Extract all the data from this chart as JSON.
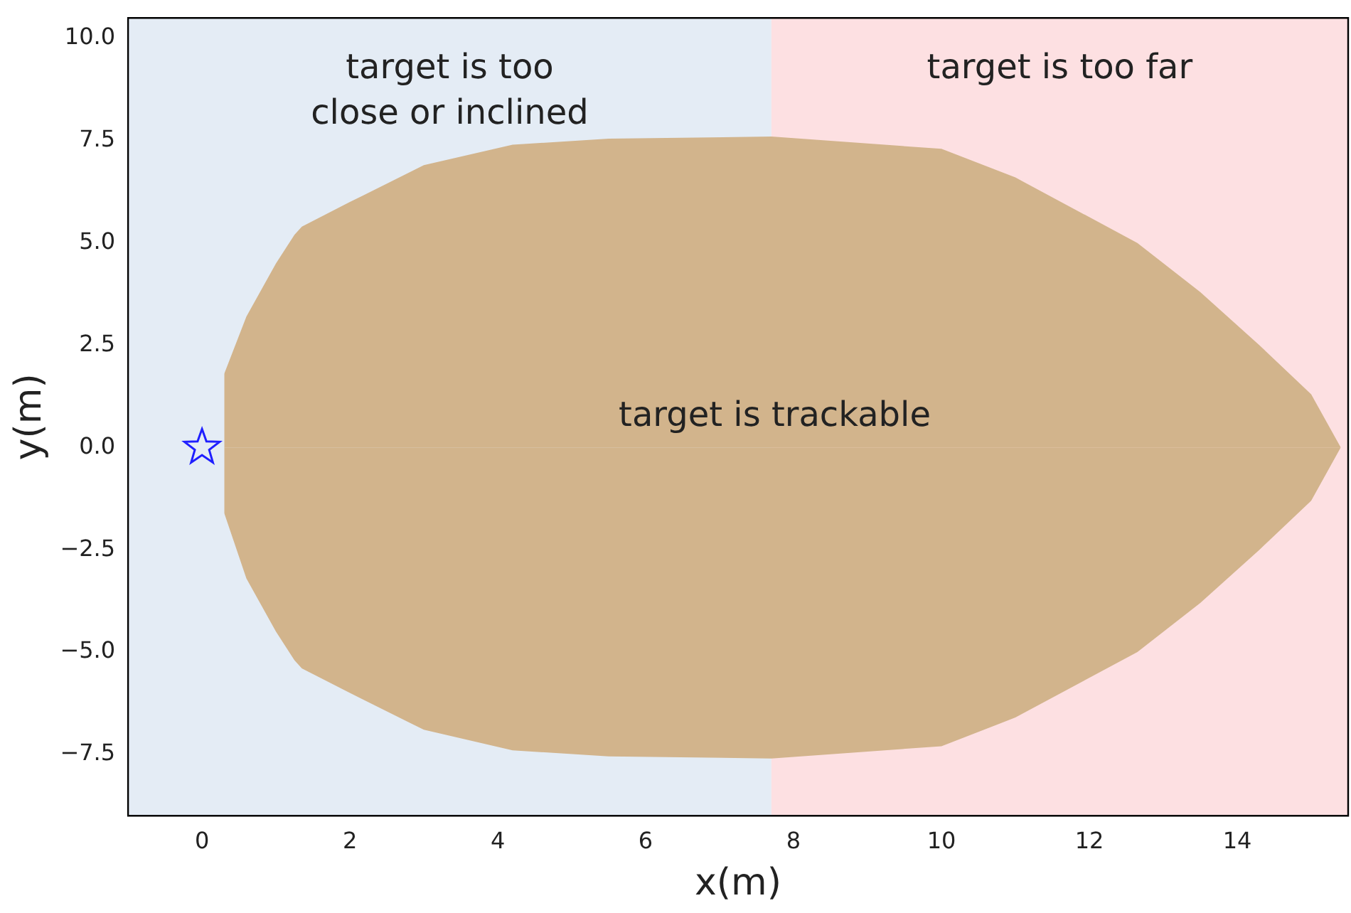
{
  "chart_data": {
    "type": "area",
    "xlabel": "x(m)",
    "ylabel": "y(m)",
    "xlim": [
      -1,
      15.5
    ],
    "ylim": [
      -9,
      10.5
    ],
    "xticks": [
      0,
      2,
      4,
      6,
      8,
      10,
      12,
      14
    ],
    "yticks": [
      {
        "value": -7.5,
        "label": "−7.5"
      },
      {
        "value": -5,
        "label": "−5.0"
      },
      {
        "value": -2.5,
        "label": "−2.5"
      },
      {
        "value": 0,
        "label": "0.0"
      },
      {
        "value": 2.5,
        "label": "2.5"
      },
      {
        "value": 5,
        "label": "5.0"
      },
      {
        "value": 7.5,
        "label": "7.5"
      },
      {
        "value": 10,
        "label": "10.0"
      }
    ],
    "grid": false,
    "legend": false,
    "bands": [
      {
        "axis": "x",
        "from": -1,
        "to": 7.7,
        "label": "target is too close or inclined",
        "color": "#e4ecf5"
      },
      {
        "axis": "x",
        "from": 7.7,
        "to": 15.5,
        "label": "target is too far",
        "color": "#fde0e2"
      }
    ],
    "annotations": [
      "target is trackable"
    ],
    "x": [
      0.3,
      0.6,
      1.0,
      1.25,
      1.3,
      1.35,
      2,
      3,
      4.2,
      5.5,
      7.7,
      10,
      11,
      12.65,
      13.5,
      14.3,
      15,
      15.4
    ],
    "series": [
      {
        "color": "#d2b48c",
        "values": [
          1.8,
          3.2,
          4.5,
          5.2,
          5.3,
          5.4,
          6.0,
          6.9,
          7.4,
          7.55,
          7.6,
          7.3,
          6.6,
          5.0,
          3.8,
          2.5,
          1.3,
          0
        ]
      },
      {
        "color": "#d2b48c",
        "values": [
          -1.6,
          -3.2,
          -4.5,
          -5.2,
          -5.3,
          -5.4,
          -6.0,
          -6.9,
          -7.4,
          -7.55,
          -7.6,
          -7.3,
          -6.6,
          -5.0,
          -3.8,
          -2.5,
          -1.3,
          0
        ]
      },
      {
        "type": "scatter",
        "color": "#1f1fff",
        "marker": "star",
        "x": [
          0
        ],
        "values": [
          0
        ]
      }
    ]
  }
}
